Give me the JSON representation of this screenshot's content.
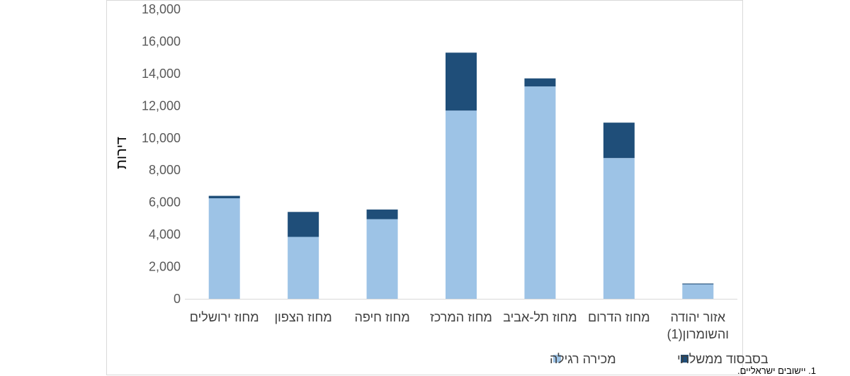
{
  "chart_data": {
    "type": "bar",
    "stacked": true,
    "direction": "rtl",
    "title": "",
    "ylabel": "דירות",
    "ylim": [
      0,
      18000
    ],
    "yticks": [
      0,
      2000,
      4000,
      6000,
      8000,
      10000,
      12000,
      14000,
      16000,
      18000
    ],
    "ytick_labels": [
      "0",
      "2,000",
      "4,000",
      "6,000",
      "8,000",
      "10,000",
      "12,000",
      "14,000",
      "16,000",
      "18,000"
    ],
    "grid": false,
    "legend_position": "bottom",
    "categories": [
      [
        "מחוז ירושלים"
      ],
      [
        "מחוז הצפון"
      ],
      [
        "מחוז חיפה"
      ],
      [
        "מחוז המרכז"
      ],
      [
        "מחוז תל-אביב"
      ],
      [
        "מחוז הדרום"
      ],
      [
        "אזור יהודה",
        "והשומרון(1)"
      ]
    ],
    "series": [
      {
        "name": "מכירה רגילה",
        "color": "#9dc3e6",
        "values": [
          6250,
          3850,
          4950,
          11700,
          13200,
          8750,
          900
        ]
      },
      {
        "name": "בסבסוד ממשלתי",
        "color": "#1f4e79",
        "values": [
          150,
          1550,
          600,
          3600,
          500,
          2200,
          50
        ]
      }
    ],
    "footnote": "1. יישובים ישראליים."
  }
}
